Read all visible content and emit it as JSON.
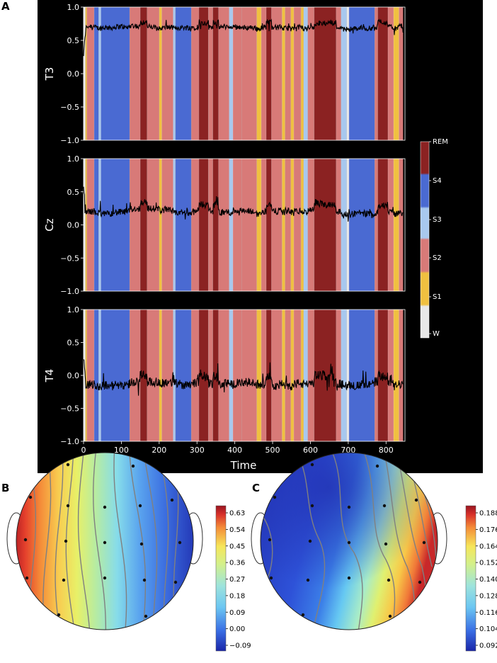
{
  "panel_labels": {
    "a": "A",
    "b": "B",
    "c": "C"
  },
  "chart_data": [
    {
      "type": "line",
      "id": "A",
      "xlabel": "Time",
      "xlim": [
        0,
        850
      ],
      "xticks": [
        "0",
        "100",
        "200",
        "300",
        "400",
        "500",
        "600",
        "700",
        "800"
      ],
      "xtick_values": [
        0,
        100,
        200,
        300,
        400,
        500,
        600,
        700,
        800
      ],
      "ylim": [
        -1.0,
        1.0
      ],
      "yticks": [
        "1.0",
        "0.5",
        "0.0",
        "−0.5",
        "−1.0"
      ],
      "ytick_values": [
        1.0,
        0.5,
        0.0,
        -0.5,
        -1.0
      ],
      "channels": [
        {
          "name": "T3",
          "baseline": 0.68,
          "noise": 0.04
        },
        {
          "name": "Cz",
          "baseline": 0.18,
          "noise": 0.05
        },
        {
          "name": "T4",
          "baseline": -0.15,
          "noise": 0.07
        }
      ],
      "sleep_stage_legend": {
        "labels": [
          "REM",
          "S4",
          "S3",
          "S2",
          "S1",
          "W"
        ],
        "colors": {
          "REM": "#8b2222",
          "S4": "#4a6ad2",
          "S3": "#a8c8ee",
          "S2": "#d87a78",
          "S1": "#f0c040",
          "W": "#e8e8e8"
        }
      },
      "hypnogram": [
        [
          0,
          5,
          "W"
        ],
        [
          5,
          9,
          "S1"
        ],
        [
          9,
          28,
          "S2"
        ],
        [
          28,
          40,
          "S4"
        ],
        [
          40,
          46,
          "S3"
        ],
        [
          46,
          122,
          "S4"
        ],
        [
          122,
          150,
          "S2"
        ],
        [
          150,
          168,
          "REM"
        ],
        [
          168,
          200,
          "S2"
        ],
        [
          200,
          207,
          "S1"
        ],
        [
          207,
          237,
          "S2"
        ],
        [
          237,
          243,
          "S3"
        ],
        [
          243,
          285,
          "S4"
        ],
        [
          285,
          305,
          "S2"
        ],
        [
          305,
          330,
          "REM"
        ],
        [
          330,
          342,
          "S2"
        ],
        [
          342,
          357,
          "REM"
        ],
        [
          357,
          385,
          "S2"
        ],
        [
          385,
          395,
          "S3"
        ],
        [
          395,
          418,
          "S2"
        ],
        [
          418,
          458,
          "S2"
        ],
        [
          458,
          470,
          "S1"
        ],
        [
          470,
          483,
          "S2"
        ],
        [
          483,
          497,
          "REM"
        ],
        [
          497,
          525,
          "S2"
        ],
        [
          525,
          533,
          "S1"
        ],
        [
          533,
          548,
          "S2"
        ],
        [
          548,
          556,
          "S1"
        ],
        [
          556,
          575,
          "S2"
        ],
        [
          575,
          582,
          "S1"
        ],
        [
          582,
          593,
          "S3"
        ],
        [
          593,
          610,
          "S2"
        ],
        [
          610,
          668,
          "REM"
        ],
        [
          668,
          681,
          "S2"
        ],
        [
          681,
          696,
          "S3"
        ],
        [
          696,
          702,
          "W"
        ],
        [
          702,
          770,
          "S4"
        ],
        [
          770,
          778,
          "S2"
        ],
        [
          778,
          805,
          "REM"
        ],
        [
          805,
          820,
          "S2"
        ],
        [
          820,
          834,
          "S1"
        ],
        [
          834,
          845,
          "S2"
        ]
      ]
    },
    {
      "type": "heatmap",
      "subtype": "topomap",
      "id": "B",
      "colorbar_ticks": [
        "0.63",
        "0.54",
        "0.45",
        "0.36",
        "0.27",
        "0.18",
        "0.09",
        "0.00",
        "−0.09"
      ],
      "colorbar_tick_values": [
        0.63,
        0.54,
        0.45,
        0.36,
        0.27,
        0.18,
        0.09,
        0.0,
        -0.09
      ],
      "range": [
        -0.12,
        0.68
      ],
      "gradient": "left high to right low",
      "colormap": [
        "#2233b8",
        "#3c7ae6",
        "#80d8f0",
        "#b8eaa0",
        "#f4ee5c",
        "#f8a03c",
        "#e4342c",
        "#a41620"
      ]
    },
    {
      "type": "heatmap",
      "subtype": "topomap",
      "id": "C",
      "colorbar_ticks": [
        "0.188",
        "0.176",
        "0.164",
        "0.152",
        "0.140",
        "0.128",
        "0.116",
        "0.104",
        "0.092"
      ],
      "colorbar_tick_values": [
        0.188,
        0.176,
        0.164,
        0.152,
        0.14,
        0.128,
        0.116,
        0.104,
        0.092
      ],
      "range": [
        0.09,
        0.19
      ],
      "gradient": "low on left and top, high on right",
      "colormap": [
        "#2233b8",
        "#3c7ae6",
        "#80d8f0",
        "#b8eaa0",
        "#f4ee5c",
        "#f8a03c",
        "#e4342c",
        "#a41620"
      ]
    }
  ]
}
